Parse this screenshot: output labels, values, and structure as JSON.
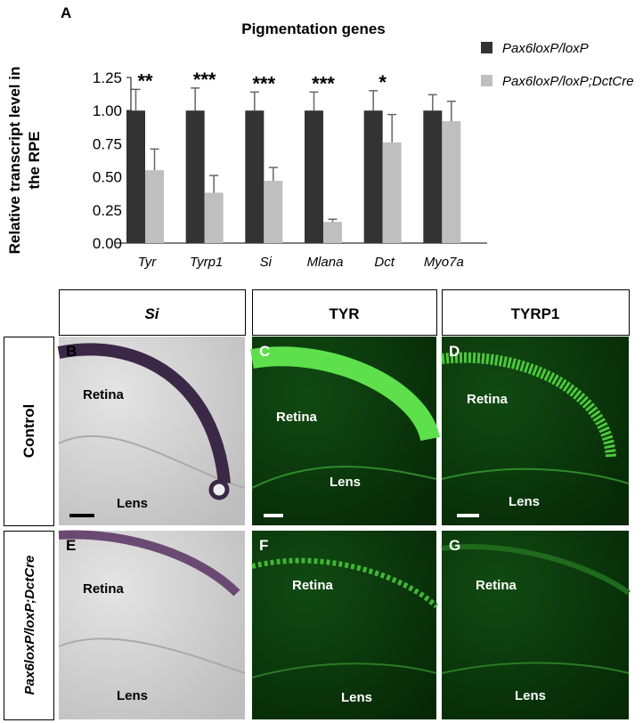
{
  "panel_label": "A",
  "chart_data": {
    "type": "bar",
    "title": "Pigmentation genes",
    "ylabel": [
      "Relative transcript level in",
      "the RPE"
    ],
    "categories": [
      "Tyr",
      "Tyrp1",
      "Si",
      "Mlana",
      "Dct",
      "Myo7a"
    ],
    "series": [
      {
        "name": "Pax6loxP/loxP",
        "color": "#333333",
        "values": [
          1,
          1,
          1,
          1,
          1,
          1
        ],
        "errors": [
          0.16,
          0.17,
          0.14,
          0.14,
          0.15,
          0.12
        ]
      },
      {
        "name": "Pax6loxP/loxP;DctCre",
        "color": "#bfbfbf",
        "values": [
          0.55,
          0.38,
          0.47,
          0.16,
          0.76,
          0.92
        ],
        "errors": [
          0.16,
          0.13,
          0.1,
          0.02,
          0.21,
          0.15
        ]
      }
    ],
    "significance": [
      "**",
      "***",
      "***",
      "***",
      "*",
      null
    ],
    "ylim": [
      0,
      1.25
    ],
    "yticks": [
      {
        "value": 0,
        "label": "0.00"
      },
      0.25,
      {
        "value": 0.5,
        "label": "0.50"
      },
      0.75,
      {
        "value": 1,
        "label": "1.00"
      },
      1.25
    ]
  },
  "figure": {
    "columns": [
      "Si",
      "TYR",
      "TYRP1"
    ],
    "rows": [
      "Control",
      "Pax6loxP/loxP;DctCre"
    ],
    "panels": [
      {
        "letter": "B",
        "labels": [
          "Retina",
          "Lens"
        ]
      },
      {
        "letter": "C",
        "labels": [
          "Retina",
          "Lens"
        ]
      },
      {
        "letter": "D",
        "labels": [
          "Retina",
          "Lens"
        ]
      },
      {
        "letter": "E",
        "labels": [
          "Retina",
          "Lens"
        ]
      },
      {
        "letter": "F",
        "labels": [
          "Retina",
          "Lens"
        ]
      },
      {
        "letter": "G",
        "labels": [
          "Retina",
          "Lens"
        ]
      }
    ]
  }
}
